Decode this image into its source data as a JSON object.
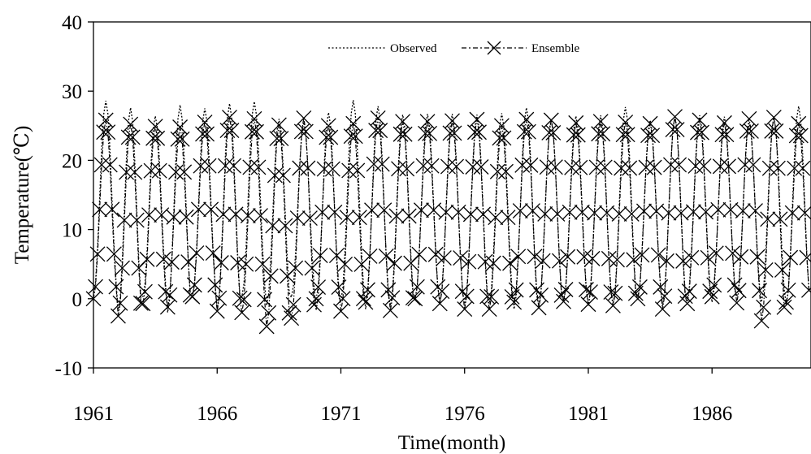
{
  "chart_data": {
    "type": "line",
    "title": "",
    "xlabel": "Time(month)",
    "ylabel": "Temperature(℃)",
    "xlim": [
      1961,
      1990
    ],
    "ylim": [
      -10,
      40
    ],
    "x_ticks": [
      "1961",
      "1966",
      "1971",
      "1976",
      "1981",
      "1986"
    ],
    "y_ticks": [
      "-10",
      "0",
      "10",
      "20",
      "30",
      "40"
    ],
    "grid": false,
    "legend_position": "top",
    "x_resolution": "monthly",
    "months_per_year": 12,
    "series": [
      {
        "name": "Observed",
        "style": "dotted line",
        "color": "#000000",
        "annual_peaks": [
          28.6,
          27.6,
          26.4,
          28.0,
          27.5,
          28.2,
          28.5,
          26.0,
          25.5,
          26.9,
          28.7,
          27.8,
          26.6,
          26.7,
          26.7,
          26.6,
          26.8,
          27.6,
          26.0,
          26.4,
          26.5,
          27.7,
          25.8,
          26.3,
          26.5,
          26.3,
          25.4,
          26.2,
          27.8,
          28.0
        ],
        "annual_troughs": [
          0.4,
          -1.8,
          0.3,
          -2.0,
          0.3,
          -1.5,
          0.3,
          -1.0,
          0.2,
          -1.7,
          -0.3,
          -1.5,
          -1.0,
          0.0,
          -0.6,
          -1.0,
          -0.7,
          -1.5,
          -1.0,
          -0.3,
          -1.0,
          -0.8,
          0.2,
          -1.0,
          0.0,
          -0.5,
          0.3,
          -0.5,
          -0.8,
          -2.0
        ]
      },
      {
        "name": "Ensemble",
        "style": "dash-dot line with x markers",
        "color": "#000000",
        "annual_peaks": [
          25.8,
          25.2,
          24.9,
          24.8,
          25.5,
          26.2,
          26.0,
          25.1,
          26.1,
          25.0,
          25.3,
          26.1,
          25.6,
          25.6,
          25.7,
          25.9,
          25.0,
          25.9,
          25.8,
          25.4,
          25.6,
          25.5,
          25.3,
          26.3,
          25.8,
          25.4,
          26.0,
          26.2,
          25.3,
          25.9
        ],
        "annual_troughs": [
          0.0,
          -2.5,
          -0.7,
          -1.2,
          0.3,
          -1.8,
          -2.0,
          -4.0,
          -2.8,
          0.0,
          -1.8,
          -0.5,
          -1.7,
          0.0,
          -0.7,
          -1.5,
          -1.5,
          -0.5,
          -1.3,
          -0.4,
          -0.8,
          -1.0,
          0.0,
          -1.5,
          -0.7,
          0.3,
          -0.6,
          -3.2,
          -0.5,
          -2.2
        ]
      }
    ]
  }
}
